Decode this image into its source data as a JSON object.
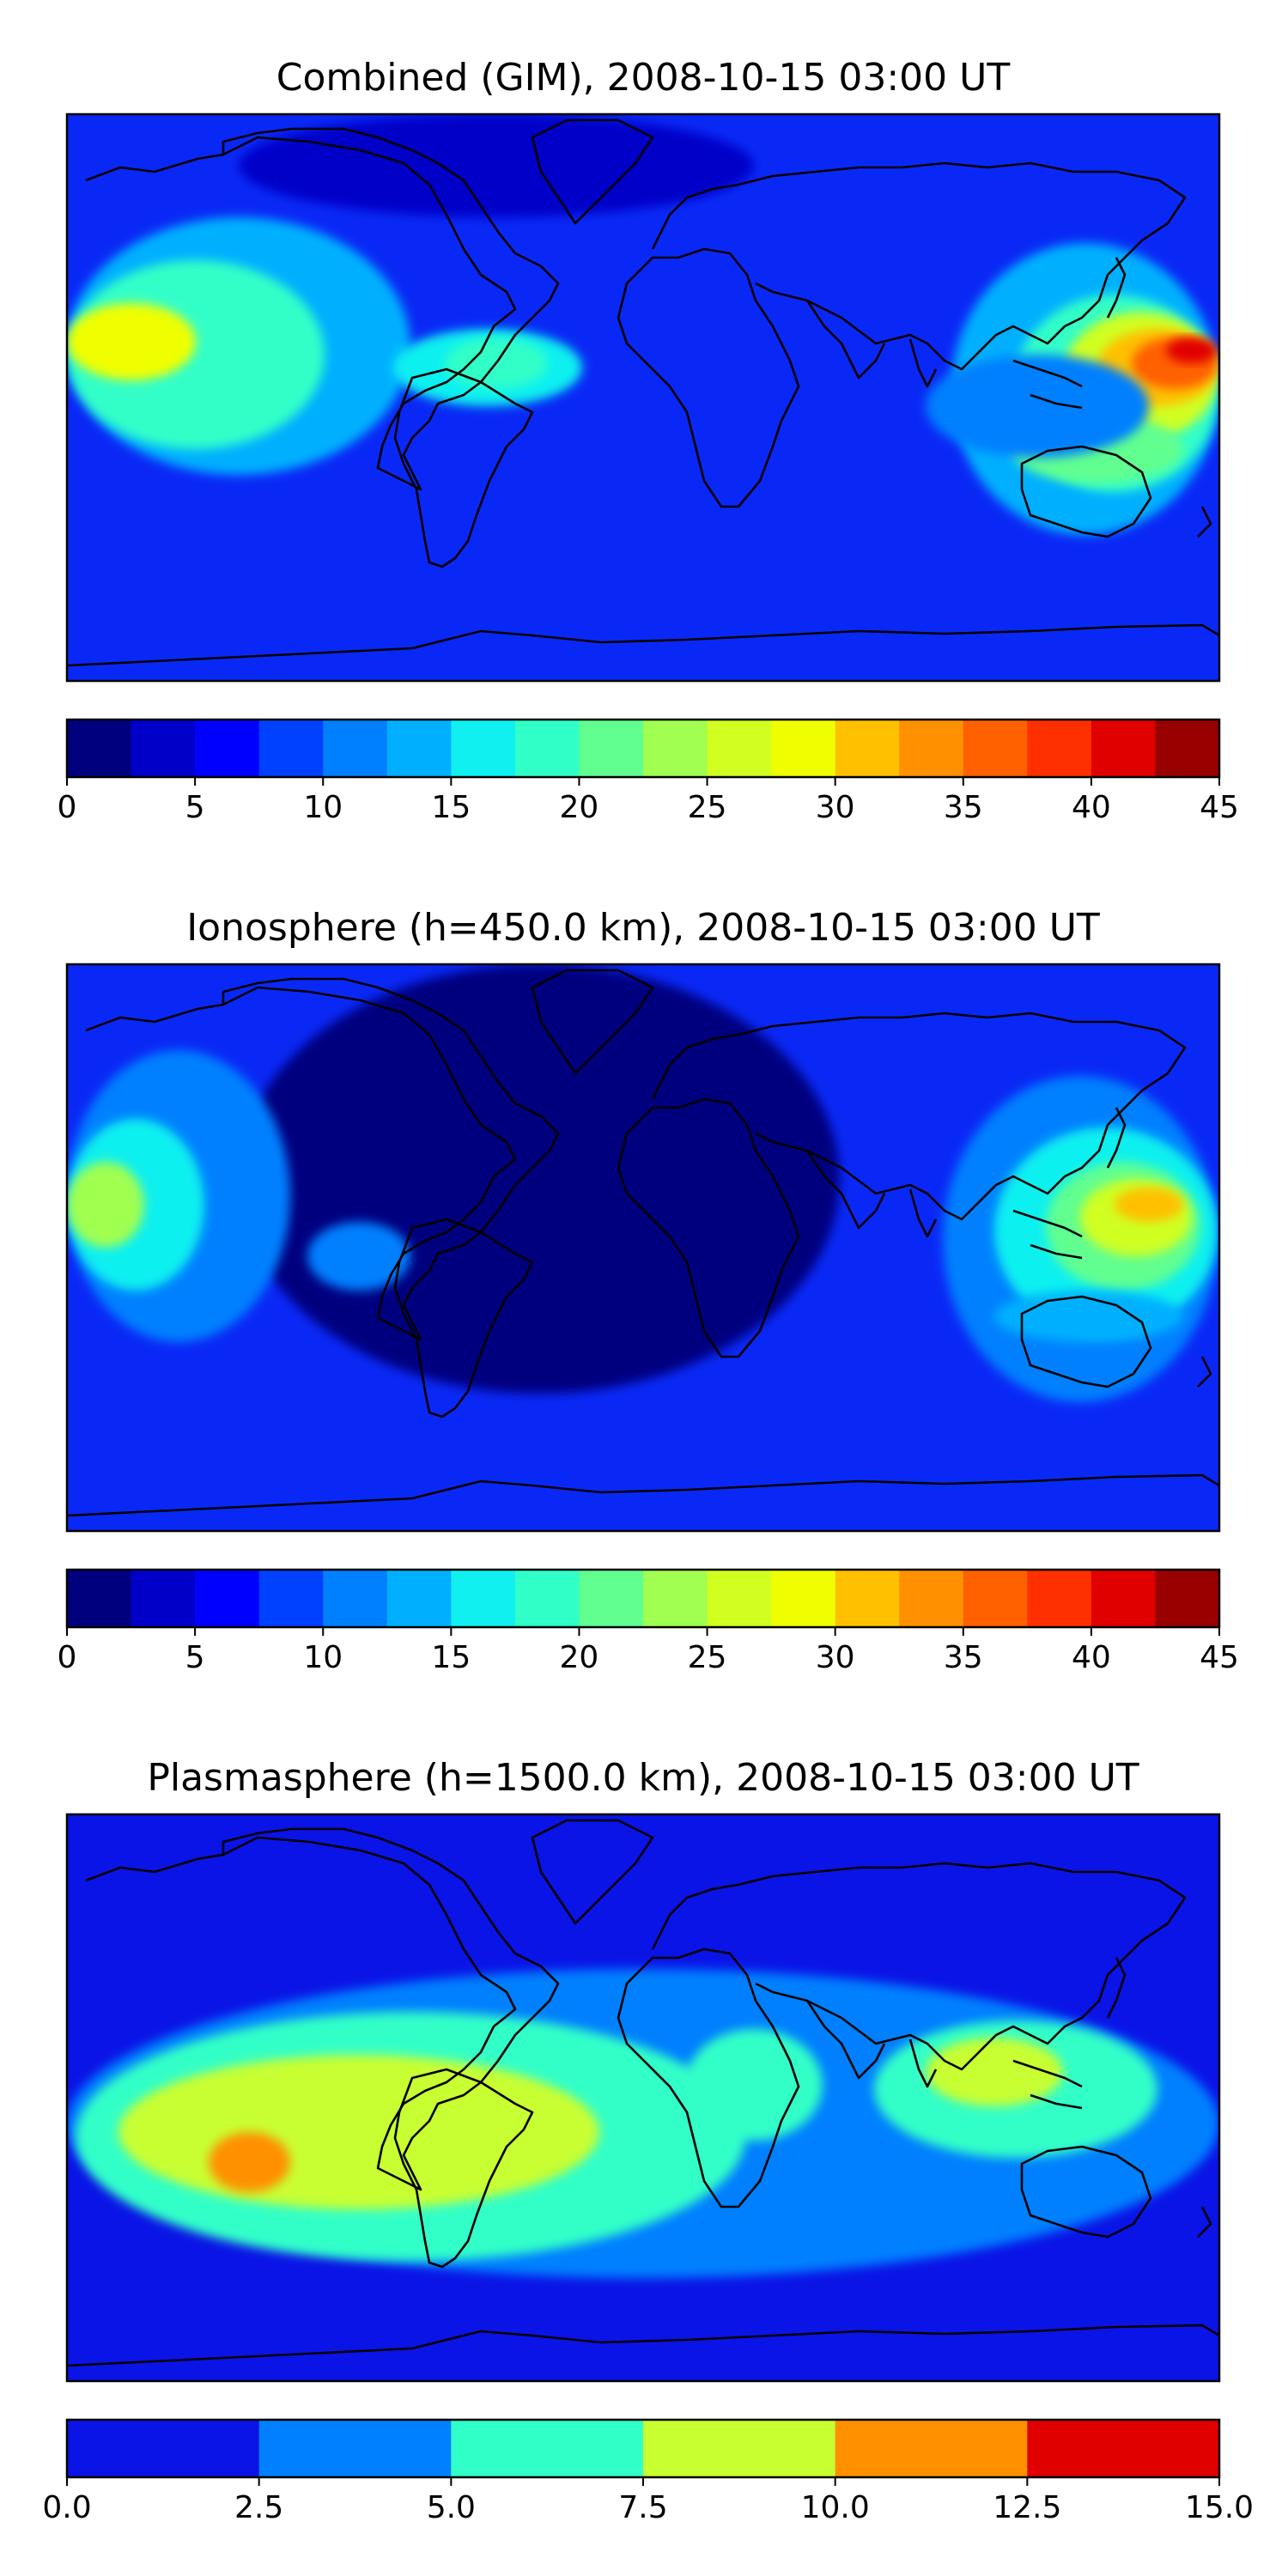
{
  "figure": {
    "panels": [
      {
        "title": "Combined (GIM), 2008-10-15 03:00 UT",
        "colorbar": {
          "tick_labels": [
            "0",
            "5",
            "10",
            "15",
            "20",
            "25",
            "30",
            "35",
            "40",
            "45"
          ],
          "colors": [
            "#00007f",
            "#0000c8",
            "#0000ff",
            "#0040ff",
            "#0080ff",
            "#00b0ff",
            "#10f0f0",
            "#30ffc8",
            "#60ff90",
            "#a0ff50",
            "#d0ff20",
            "#f0ff00",
            "#ffc000",
            "#ff9000",
            "#ff6000",
            "#ff3000",
            "#e00000",
            "#990000"
          ]
        },
        "background_color": "#0a28f5"
      },
      {
        "title": "Ionosphere  (h=450.0 km), 2008-10-15 03:00 UT",
        "colorbar": {
          "tick_labels": [
            "0",
            "5",
            "10",
            "15",
            "20",
            "25",
            "30",
            "35",
            "40",
            "45"
          ],
          "colors": [
            "#00007f",
            "#0000c8",
            "#0000ff",
            "#0040ff",
            "#0080ff",
            "#00b0ff",
            "#10f0f0",
            "#30ffc8",
            "#60ff90",
            "#a0ff50",
            "#d0ff20",
            "#f0ff00",
            "#ffc000",
            "#ff9000",
            "#ff6000",
            "#ff3000",
            "#e00000",
            "#990000"
          ]
        },
        "background_color": "#0a28f5"
      },
      {
        "title": "Plasmasphere (h=1500.0 km), 2008-10-15 03:00 UT",
        "colorbar": {
          "tick_labels": [
            "0.0",
            "2.5",
            "5.0",
            "7.5",
            "10.0",
            "12.5",
            "15.0"
          ],
          "colors": [
            "#0a14e6",
            "#0080ff",
            "#30ffc8",
            "#c8ff30",
            "#ff9000",
            "#e00000"
          ]
        },
        "background_color": "#0a14e6"
      }
    ]
  },
  "chart_data": [
    {
      "type": "heatmap",
      "title": "Combined (GIM), 2008-10-15 03:00 UT",
      "colorbar_range": [
        0,
        45
      ],
      "colorbar_ticks": [
        0,
        5,
        10,
        15,
        20,
        25,
        30,
        35,
        40,
        45
      ],
      "level_step": 2.5,
      "notes": "Global TEC map with coastlines; maxima ~35-40 over East Asia/Australia, ~25-30 over eastern Pacific"
    },
    {
      "type": "heatmap",
      "title": "Ionosphere  (h=450.0 km), 2008-10-15 03:00 UT",
      "colorbar_range": [
        0,
        45
      ],
      "colorbar_ticks": [
        0,
        5,
        10,
        15,
        20,
        25,
        30,
        35,
        40,
        45
      ],
      "level_step": 2.5,
      "notes": "Maxima ~30-32 over East Asia, ~20-25 over eastern Pacific"
    },
    {
      "type": "heatmap",
      "title": "Plasmasphere (h=1500.0 km), 2008-10-15 03:00 UT",
      "colorbar_range": [
        0,
        15
      ],
      "colorbar_ticks": [
        0.0,
        2.5,
        5.0,
        7.5,
        10.0,
        12.5,
        15.0
      ],
      "level_step": 2.5,
      "notes": "Equatorial band 5-10, local max 10-12.5 over eastern Pacific"
    }
  ]
}
